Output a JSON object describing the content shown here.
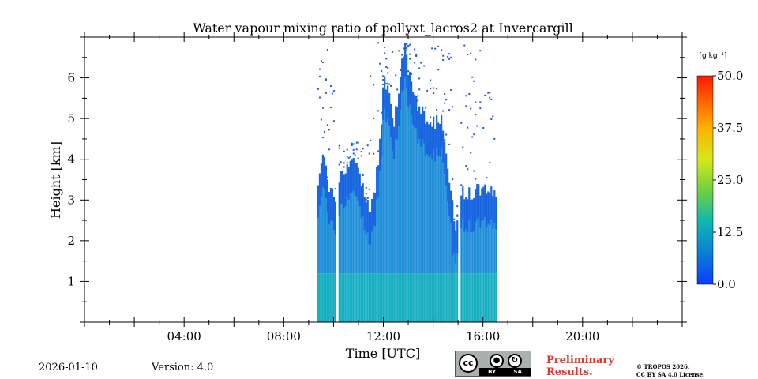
{
  "chart_data": {
    "type": "heatmap",
    "title": "Water vapour mixing ratio of pollyxt_lacros2 at Invercargill",
    "xlabel": "Time [UTC]",
    "ylabel": "Height [km]",
    "xlim": [
      0,
      24
    ],
    "ylim": [
      0,
      7
    ],
    "x_ticks": [
      {
        "value": 4,
        "label": "04:00"
      },
      {
        "value": 8,
        "label": "08:00"
      },
      {
        "value": 12,
        "label": "12:00"
      },
      {
        "value": 16,
        "label": "16:00"
      },
      {
        "value": 20,
        "label": "20:00"
      }
    ],
    "y_ticks": [
      {
        "value": 1,
        "label": "1"
      },
      {
        "value": 2,
        "label": "2"
      },
      {
        "value": 3,
        "label": "3"
      },
      {
        "value": 4,
        "label": "4"
      },
      {
        "value": 5,
        "label": "5"
      },
      {
        "value": 6,
        "label": "6"
      }
    ],
    "colorbar": {
      "unit_label": "[g kg⁻¹]",
      "min": 0,
      "max": 50,
      "ticks": [
        {
          "value": 0,
          "label": "0.0"
        },
        {
          "value": 12.5,
          "label": "12.5"
        },
        {
          "value": 25,
          "label": "25.0"
        },
        {
          "value": 37.5,
          "label": "37.5"
        },
        {
          "value": 50,
          "label": "50.0"
        }
      ]
    },
    "data_segments": [
      {
        "start_h": 9.35,
        "end_h": 10.05,
        "profile": [
          [
            9.35,
            3.3
          ],
          [
            9.55,
            4.0
          ],
          [
            9.75,
            3.5
          ],
          [
            10.05,
            2.8
          ]
        ],
        "noise_top": 6.9
      },
      {
        "start_h": 10.2,
        "end_h": 11.45,
        "profile": [
          [
            10.2,
            3.5
          ],
          [
            10.7,
            4.1
          ],
          [
            11.1,
            3.3
          ],
          [
            11.45,
            2.8
          ]
        ],
        "noise_top": 4.5
      },
      {
        "start_h": 11.45,
        "end_h": 14.75,
        "profile": [
          [
            11.45,
            2.6
          ],
          [
            11.8,
            4.0
          ],
          [
            12.0,
            6.2
          ],
          [
            12.4,
            4.8
          ],
          [
            12.8,
            6.8
          ],
          [
            13.2,
            5.5
          ],
          [
            13.8,
            4.8
          ],
          [
            14.3,
            5.0
          ],
          [
            14.75,
            3.0
          ]
        ],
        "noise_top": 6.9
      },
      {
        "start_h": 14.75,
        "end_h": 15.0,
        "profile": [
          [
            14.75,
            2.5
          ],
          [
            15.0,
            2.4
          ]
        ],
        "noise_top": 3.0
      },
      {
        "start_h": 15.1,
        "end_h": 16.55,
        "profile": [
          [
            15.1,
            3.2
          ],
          [
            16.55,
            3.2
          ]
        ],
        "noise_top": 6.9
      }
    ],
    "value_range_observed": [
      2,
      15
    ]
  },
  "footer": {
    "date": "2026-01-10",
    "version": "Version: 4.0",
    "license_badge": {
      "cc": "cc",
      "by": "BY",
      "sa": "SA"
    },
    "preliminary": "Preliminary Results.",
    "copyright_line1": "© TROPOS 2026.",
    "copyright_line2": "CC BY SA 4.0 License."
  },
  "colors": {
    "background": "#ffffff",
    "axes": "#000000",
    "preliminary_text": "#e8322c"
  }
}
